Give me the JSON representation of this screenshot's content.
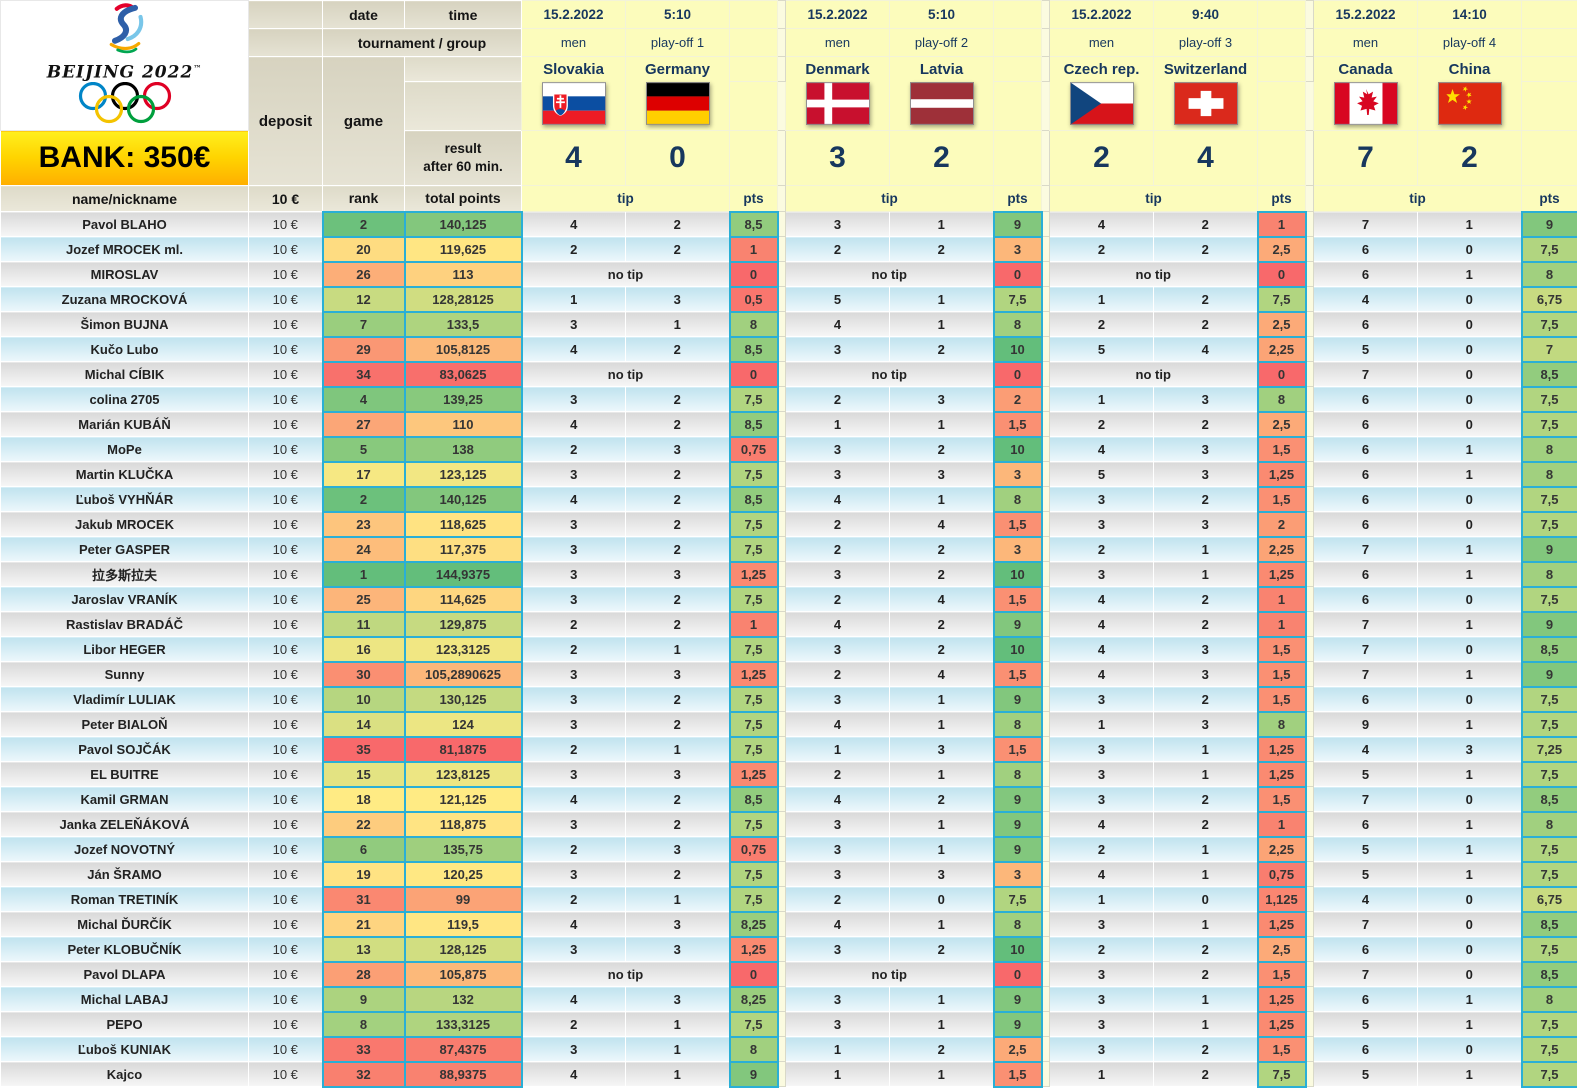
{
  "bank_label": "BANK: 350€",
  "logo": {
    "title": "BEIJING 2022",
    "trademark": "™"
  },
  "header": {
    "date_label": "date",
    "time_label": "time",
    "tournament_group_label": "tournament / group",
    "deposit_label": "deposit",
    "game_label": "game",
    "result_label_line1": "result",
    "result_label_line2": "after 60 min.",
    "name_col_label": "name/nickname",
    "deposit_value": "10 €",
    "rank_label": "rank",
    "total_points_label": "total points",
    "tip_label": "tip",
    "pts_label": "pts",
    "no_tip_label": "no tip"
  },
  "colors": {
    "accent_border": "#2aafd6",
    "header_beige": "#dcd8c6",
    "header_yellow": "#fcfcbc",
    "pale_yellow": "#fbfbe0",
    "navy": "#17375e",
    "scale_red": "#f8696b",
    "scale_yellow": "#ffeb84",
    "scale_green": "#63be7b"
  },
  "scale_anchors": {
    "rank": {
      "best": 1,
      "mid": 18,
      "worst": 35
    },
    "total": {
      "min": 81.1875,
      "mid": 121.125,
      "max": 144.9375
    },
    "pts": {
      "min": 0,
      "mid": 5,
      "max": 10
    }
  },
  "matches": [
    {
      "date": "15.2.2022",
      "time": "5:10",
      "category": "men",
      "stage": "play-off 1",
      "home": {
        "name": "Slovakia",
        "flag": "slovakia",
        "score": "4"
      },
      "away": {
        "name": "Germany",
        "flag": "germany",
        "score": "0"
      }
    },
    {
      "date": "15.2.2022",
      "time": "5:10",
      "category": "men",
      "stage": "play-off 2",
      "home": {
        "name": "Denmark",
        "flag": "denmark",
        "score": "3"
      },
      "away": {
        "name": "Latvia",
        "flag": "latvia",
        "score": "2"
      }
    },
    {
      "date": "15.2.2022",
      "time": "9:40",
      "category": "men",
      "stage": "play-off 3",
      "home": {
        "name": "Czech rep.",
        "flag": "czech",
        "score": "2"
      },
      "away": {
        "name": "Switzerland",
        "flag": "switzerland",
        "score": "4"
      }
    },
    {
      "date": "15.2.2022",
      "time": "14:10",
      "category": "men",
      "stage": "play-off 4",
      "home": {
        "name": "Canada",
        "flag": "canada",
        "score": "7"
      },
      "away": {
        "name": "China",
        "flag": "china",
        "score": "2"
      }
    }
  ],
  "players": [
    {
      "name": "Pavol BLAHO",
      "rank": "2",
      "total": "140,125",
      "tips": [
        [
          "4",
          "2",
          "8,5"
        ],
        [
          "3",
          "1",
          "9"
        ],
        [
          "4",
          "2",
          "1"
        ],
        [
          "7",
          "1",
          "9"
        ]
      ]
    },
    {
      "name": "Jozef MROCEK ml.",
      "rank": "20",
      "total": "119,625",
      "tips": [
        [
          "2",
          "2",
          "1"
        ],
        [
          "2",
          "2",
          "3"
        ],
        [
          "2",
          "2",
          "2,5"
        ],
        [
          "6",
          "0",
          "7,5"
        ]
      ]
    },
    {
      "name": "MIROSLAV",
      "rank": "26",
      "total": "113",
      "tips": [
        [
          null,
          null,
          "0"
        ],
        [
          null,
          null,
          "0"
        ],
        [
          null,
          null,
          "0"
        ],
        [
          "6",
          "1",
          "8"
        ]
      ]
    },
    {
      "name": "Zuzana MROCKOVÁ",
      "rank": "12",
      "total": "128,28125",
      "tips": [
        [
          "1",
          "3",
          "0,5"
        ],
        [
          "5",
          "1",
          "7,5"
        ],
        [
          "1",
          "2",
          "7,5"
        ],
        [
          "4",
          "0",
          "6,75"
        ]
      ]
    },
    {
      "name": "Šimon BUJNA",
      "rank": "7",
      "total": "133,5",
      "tips": [
        [
          "3",
          "1",
          "8"
        ],
        [
          "4",
          "1",
          "8"
        ],
        [
          "2",
          "2",
          "2,5"
        ],
        [
          "6",
          "0",
          "7,5"
        ]
      ]
    },
    {
      "name": "Kučo Lubo",
      "rank": "29",
      "total": "105,8125",
      "tips": [
        [
          "4",
          "2",
          "8,5"
        ],
        [
          "3",
          "2",
          "10"
        ],
        [
          "5",
          "4",
          "2,25"
        ],
        [
          "5",
          "0",
          "7"
        ]
      ]
    },
    {
      "name": "Michal CÍBIK",
      "rank": "34",
      "total": "83,0625",
      "tips": [
        [
          null,
          null,
          "0"
        ],
        [
          null,
          null,
          "0"
        ],
        [
          null,
          null,
          "0"
        ],
        [
          "7",
          "0",
          "8,5"
        ]
      ]
    },
    {
      "name": "colina 2705",
      "rank": "4",
      "total": "139,25",
      "tips": [
        [
          "3",
          "2",
          "7,5"
        ],
        [
          "2",
          "3",
          "2"
        ],
        [
          "1",
          "3",
          "8"
        ],
        [
          "6",
          "0",
          "7,5"
        ]
      ]
    },
    {
      "name": "Marián KUBÁŇ",
      "rank": "27",
      "total": "110",
      "tips": [
        [
          "4",
          "2",
          "8,5"
        ],
        [
          "1",
          "1",
          "1,5"
        ],
        [
          "2",
          "2",
          "2,5"
        ],
        [
          "6",
          "0",
          "7,5"
        ]
      ]
    },
    {
      "name": "MoPe",
      "rank": "5",
      "total": "138",
      "tips": [
        [
          "2",
          "3",
          "0,75"
        ],
        [
          "3",
          "2",
          "10"
        ],
        [
          "4",
          "3",
          "1,5"
        ],
        [
          "6",
          "1",
          "8"
        ]
      ]
    },
    {
      "name": "Martin KLUČKA",
      "rank": "17",
      "total": "123,125",
      "tips": [
        [
          "3",
          "2",
          "7,5"
        ],
        [
          "3",
          "3",
          "3"
        ],
        [
          "5",
          "3",
          "1,25"
        ],
        [
          "6",
          "1",
          "8"
        ]
      ]
    },
    {
      "name": "Ľuboš VYHŇÁR",
      "rank": "2",
      "total": "140,125",
      "tips": [
        [
          "4",
          "2",
          "8,5"
        ],
        [
          "4",
          "1",
          "8"
        ],
        [
          "3",
          "2",
          "1,5"
        ],
        [
          "6",
          "0",
          "7,5"
        ]
      ]
    },
    {
      "name": "Jakub MROCEK",
      "rank": "23",
      "total": "118,625",
      "tips": [
        [
          "3",
          "2",
          "7,5"
        ],
        [
          "2",
          "4",
          "1,5"
        ],
        [
          "3",
          "3",
          "2"
        ],
        [
          "6",
          "0",
          "7,5"
        ]
      ]
    },
    {
      "name": "Peter GASPER",
      "rank": "24",
      "total": "117,375",
      "tips": [
        [
          "3",
          "2",
          "7,5"
        ],
        [
          "2",
          "2",
          "3"
        ],
        [
          "2",
          "1",
          "2,25"
        ],
        [
          "7",
          "1",
          "9"
        ]
      ]
    },
    {
      "name": "拉多斯拉夫",
      "rank": "1",
      "total": "144,9375",
      "tips": [
        [
          "3",
          "3",
          "1,25"
        ],
        [
          "3",
          "2",
          "10"
        ],
        [
          "3",
          "1",
          "1,25"
        ],
        [
          "6",
          "1",
          "8"
        ]
      ]
    },
    {
      "name": "Jaroslav VRANÍK",
      "rank": "25",
      "total": "114,625",
      "tips": [
        [
          "3",
          "2",
          "7,5"
        ],
        [
          "2",
          "4",
          "1,5"
        ],
        [
          "4",
          "2",
          "1"
        ],
        [
          "6",
          "0",
          "7,5"
        ]
      ]
    },
    {
      "name": "Rastislav BRADÁČ",
      "rank": "11",
      "total": "129,875",
      "tips": [
        [
          "2",
          "2",
          "1"
        ],
        [
          "4",
          "2",
          "9"
        ],
        [
          "4",
          "2",
          "1"
        ],
        [
          "7",
          "1",
          "9"
        ]
      ]
    },
    {
      "name": "Libor HEGER",
      "rank": "16",
      "total": "123,3125",
      "tips": [
        [
          "2",
          "1",
          "7,5"
        ],
        [
          "3",
          "2",
          "10"
        ],
        [
          "4",
          "3",
          "1,5"
        ],
        [
          "7",
          "0",
          "8,5"
        ]
      ]
    },
    {
      "name": "Sunny",
      "rank": "30",
      "total": "105,2890625",
      "tips": [
        [
          "3",
          "3",
          "1,25"
        ],
        [
          "2",
          "4",
          "1,5"
        ],
        [
          "4",
          "3",
          "1,5"
        ],
        [
          "7",
          "1",
          "9"
        ]
      ]
    },
    {
      "name": "Vladimír LULIAK",
      "rank": "10",
      "total": "130,125",
      "tips": [
        [
          "3",
          "2",
          "7,5"
        ],
        [
          "3",
          "1",
          "9"
        ],
        [
          "3",
          "2",
          "1,5"
        ],
        [
          "6",
          "0",
          "7,5"
        ]
      ]
    },
    {
      "name": "Peter BIALOŇ",
      "rank": "14",
      "total": "124",
      "tips": [
        [
          "3",
          "2",
          "7,5"
        ],
        [
          "4",
          "1",
          "8"
        ],
        [
          "1",
          "3",
          "8"
        ],
        [
          "9",
          "1",
          "7,5"
        ]
      ]
    },
    {
      "name": "Pavol SOJČÁK",
      "rank": "35",
      "total": "81,1875",
      "tips": [
        [
          "2",
          "1",
          "7,5"
        ],
        [
          "1",
          "3",
          "1,5"
        ],
        [
          "3",
          "1",
          "1,25"
        ],
        [
          "4",
          "3",
          "7,25"
        ]
      ]
    },
    {
      "name": "EL BUITRE",
      "rank": "15",
      "total": "123,8125",
      "tips": [
        [
          "3",
          "3",
          "1,25"
        ],
        [
          "2",
          "1",
          "8"
        ],
        [
          "3",
          "1",
          "1,25"
        ],
        [
          "5",
          "1",
          "7,5"
        ]
      ]
    },
    {
      "name": "Kamil GRMAN",
      "rank": "18",
      "total": "121,125",
      "tips": [
        [
          "4",
          "2",
          "8,5"
        ],
        [
          "4",
          "2",
          "9"
        ],
        [
          "3",
          "2",
          "1,5"
        ],
        [
          "7",
          "0",
          "8,5"
        ]
      ]
    },
    {
      "name": "Janka ZELEŇÁKOVÁ",
      "rank": "22",
      "total": "118,875",
      "tips": [
        [
          "3",
          "2",
          "7,5"
        ],
        [
          "3",
          "1",
          "9"
        ],
        [
          "4",
          "2",
          "1"
        ],
        [
          "6",
          "1",
          "8"
        ]
      ]
    },
    {
      "name": "Jozef NOVOTNÝ",
      "rank": "6",
      "total": "135,75",
      "tips": [
        [
          "2",
          "3",
          "0,75"
        ],
        [
          "3",
          "1",
          "9"
        ],
        [
          "2",
          "1",
          "2,25"
        ],
        [
          "5",
          "1",
          "7,5"
        ]
      ]
    },
    {
      "name": "Ján ŠRAMO",
      "rank": "19",
      "total": "120,25",
      "tips": [
        [
          "3",
          "2",
          "7,5"
        ],
        [
          "3",
          "3",
          "3"
        ],
        [
          "4",
          "1",
          "0,75"
        ],
        [
          "5",
          "1",
          "7,5"
        ]
      ]
    },
    {
      "name": "Roman TRETINÍK",
      "rank": "31",
      "total": "99",
      "tips": [
        [
          "2",
          "1",
          "7,5"
        ],
        [
          "2",
          "0",
          "7,5"
        ],
        [
          "1",
          "0",
          "1,125"
        ],
        [
          "4",
          "0",
          "6,75"
        ]
      ]
    },
    {
      "name": "Michal ĎURČÍK",
      "rank": "21",
      "total": "119,5",
      "tips": [
        [
          "4",
          "3",
          "8,25"
        ],
        [
          "4",
          "1",
          "8"
        ],
        [
          "3",
          "1",
          "1,25"
        ],
        [
          "7",
          "0",
          "8,5"
        ]
      ]
    },
    {
      "name": "Peter KLOBUČNÍK",
      "rank": "13",
      "total": "128,125",
      "tips": [
        [
          "3",
          "3",
          "1,25"
        ],
        [
          "3",
          "2",
          "10"
        ],
        [
          "2",
          "2",
          "2,5"
        ],
        [
          "6",
          "0",
          "7,5"
        ]
      ]
    },
    {
      "name": "Pavol DLAPA",
      "rank": "28",
      "total": "105,875",
      "tips": [
        [
          null,
          null,
          "0"
        ],
        [
          null,
          null,
          "0"
        ],
        [
          "3",
          "2",
          "1,5"
        ],
        [
          "7",
          "0",
          "8,5"
        ]
      ]
    },
    {
      "name": "Michal LABAJ",
      "rank": "9",
      "total": "132",
      "tips": [
        [
          "4",
          "3",
          "8,25"
        ],
        [
          "3",
          "1",
          "9"
        ],
        [
          "3",
          "1",
          "1,25"
        ],
        [
          "6",
          "1",
          "8"
        ]
      ]
    },
    {
      "name": "PEPO",
      "rank": "8",
      "total": "133,3125",
      "tips": [
        [
          "2",
          "1",
          "7,5"
        ],
        [
          "3",
          "1",
          "9"
        ],
        [
          "3",
          "1",
          "1,25"
        ],
        [
          "5",
          "1",
          "7,5"
        ]
      ]
    },
    {
      "name": "Ľuboš KUNIAK",
      "rank": "33",
      "total": "87,4375",
      "tips": [
        [
          "3",
          "1",
          "8"
        ],
        [
          "1",
          "2",
          "2,5"
        ],
        [
          "3",
          "2",
          "1,5"
        ],
        [
          "6",
          "0",
          "7,5"
        ]
      ]
    },
    {
      "name": "Kajco",
      "rank": "32",
      "total": "88,9375",
      "tips": [
        [
          "4",
          "1",
          "9"
        ],
        [
          "1",
          "1",
          "1,5"
        ],
        [
          "1",
          "2",
          "7,5"
        ],
        [
          "5",
          "1",
          "7,5"
        ]
      ]
    }
  ]
}
